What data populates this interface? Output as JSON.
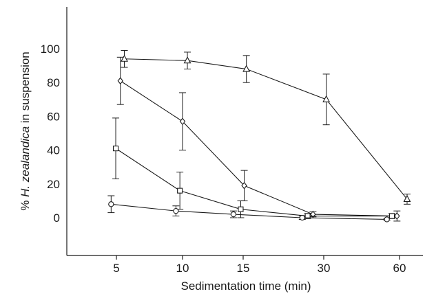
{
  "chart_data": {
    "type": "line",
    "xlabel": "Sedimentation time (min)",
    "ylabel_prefix": "% ",
    "ylabel_italic": "H. zealandica",
    "ylabel_suffix": " in suspension",
    "x_ticks": [
      "5",
      "10",
      "15",
      "30",
      "60"
    ],
    "y_ticks": [
      0,
      20,
      40,
      60,
      80,
      100
    ],
    "ylim": [
      -20,
      115
    ],
    "grid": false,
    "series": [
      {
        "marker": "triangle",
        "points": [
          {
            "x": 5.6,
            "y": 94,
            "err": 5
          },
          {
            "x": 10.4,
            "y": 93,
            "err": 5
          },
          {
            "x": 15.6,
            "y": 88,
            "err": 8
          },
          {
            "x": 31,
            "y": 70,
            "err": 15
          },
          {
            "x": 63,
            "y": 11,
            "err": 3
          }
        ]
      },
      {
        "marker": "diamond",
        "points": [
          {
            "x": 5.3,
            "y": 81,
            "err": 14
          },
          {
            "x": 10.0,
            "y": 57,
            "err": 17
          },
          {
            "x": 15.2,
            "y": 19,
            "err": 9
          },
          {
            "x": 28,
            "y": 2,
            "err": 1.5
          },
          {
            "x": 59,
            "y": 1,
            "err": 3
          }
        ]
      },
      {
        "marker": "square",
        "points": [
          {
            "x": 4.95,
            "y": 41,
            "err": 18
          },
          {
            "x": 9.8,
            "y": 16,
            "err": 11
          },
          {
            "x": 14.8,
            "y": 5,
            "err": 5
          },
          {
            "x": 27,
            "y": 1,
            "err": 1.5
          },
          {
            "x": 57,
            "y": 1,
            "err": 1.5
          }
        ]
      },
      {
        "marker": "circle",
        "points": [
          {
            "x": 4.6,
            "y": 8,
            "err": 5
          },
          {
            "x": 9.5,
            "y": 4,
            "err": 3
          },
          {
            "x": 14.2,
            "y": 2,
            "err": 2
          },
          {
            "x": 26,
            "y": 0,
            "err": 1
          },
          {
            "x": 55,
            "y": -1,
            "err": 0.5
          }
        ]
      }
    ]
  }
}
